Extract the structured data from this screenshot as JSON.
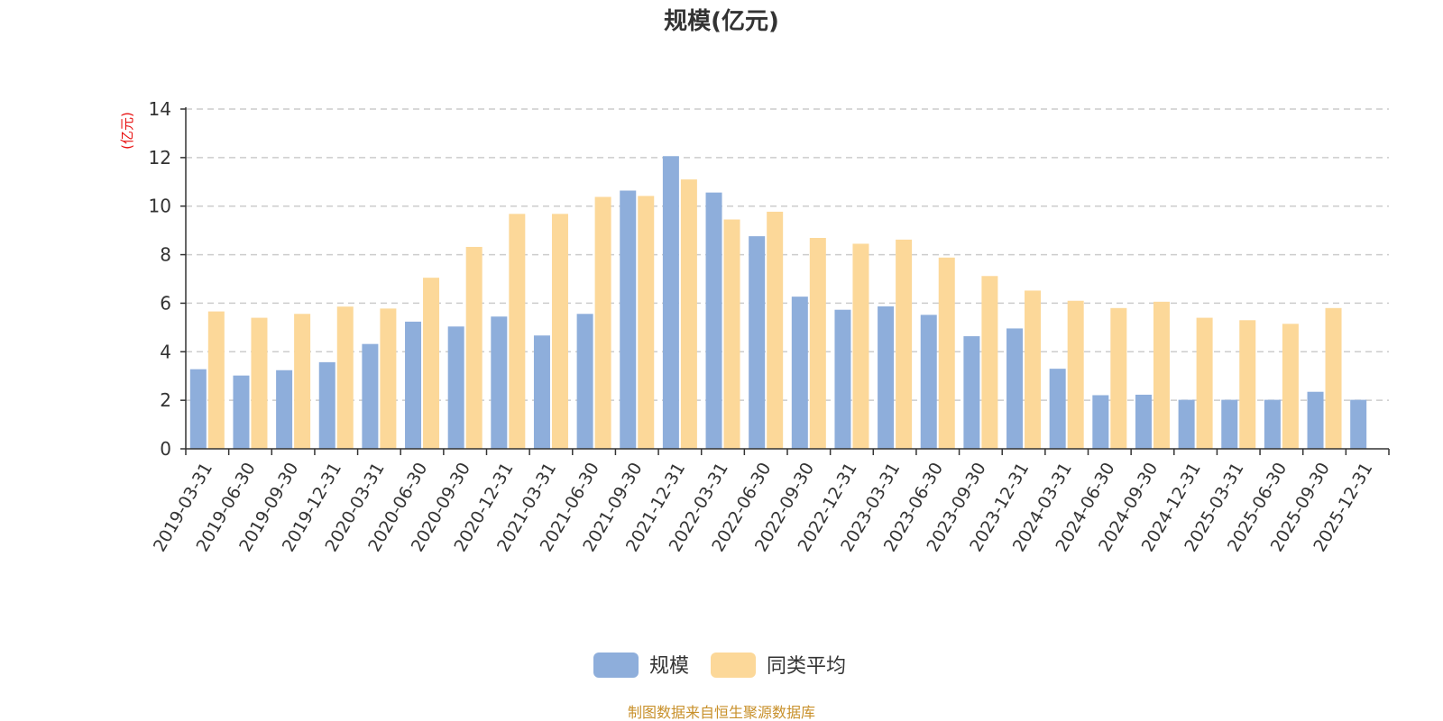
{
  "chart_data": {
    "type": "bar",
    "title": "规模(亿元)",
    "ylabel": "(亿元)",
    "ylim": [
      0,
      14
    ],
    "yticks": [
      0,
      2,
      4,
      6,
      8,
      10,
      12,
      14
    ],
    "grid": true,
    "legend_position": "bottom-center",
    "categories": [
      "2019-03-31",
      "2019-06-30",
      "2019-09-30",
      "2019-12-31",
      "2020-03-31",
      "2020-06-30",
      "2020-09-30",
      "2020-12-31",
      "2021-03-31",
      "2021-06-30",
      "2021-09-30",
      "2021-12-31",
      "2022-03-31",
      "2022-06-30",
      "2022-09-30",
      "2022-12-31",
      "2023-03-31",
      "2023-06-30",
      "2023-09-30",
      "2023-12-31",
      "2024-03-31",
      "2024-06-30",
      "2024-09-30",
      "2024-12-31",
      "2025-03-31",
      "2025-06-30",
      "2025-09-30",
      "2025-12-31"
    ],
    "series": [
      {
        "name": "规模",
        "color": "#8eaedb",
        "values": [
          3.28,
          3.02,
          3.24,
          3.57,
          4.32,
          5.24,
          5.04,
          5.45,
          4.67,
          5.56,
          10.64,
          12.06,
          10.56,
          8.76,
          6.27,
          5.73,
          5.87,
          5.52,
          4.64,
          4.96,
          3.3,
          2.21,
          2.23,
          2.02,
          2.02,
          2.02,
          2.35,
          2.02
        ]
      },
      {
        "name": "同类平均",
        "color": "#fcd899",
        "values": [
          5.66,
          5.4,
          5.56,
          5.86,
          5.78,
          7.05,
          8.32,
          9.68,
          9.68,
          10.38,
          10.42,
          11.1,
          9.45,
          9.77,
          8.69,
          8.45,
          8.62,
          7.88,
          7.12,
          6.52,
          6.1,
          5.8,
          6.06,
          5.4,
          5.3,
          5.15,
          5.8,
          null
        ]
      }
    ]
  },
  "legend": {
    "label_a": "规模",
    "label_b": "同类平均"
  },
  "colors": {
    "unit_label": "#e81010",
    "source_text": "#c8902a",
    "axis": "#333333",
    "grid": "#cccccc"
  },
  "footer": {
    "source": "制图数据来自恒生聚源数据库"
  }
}
